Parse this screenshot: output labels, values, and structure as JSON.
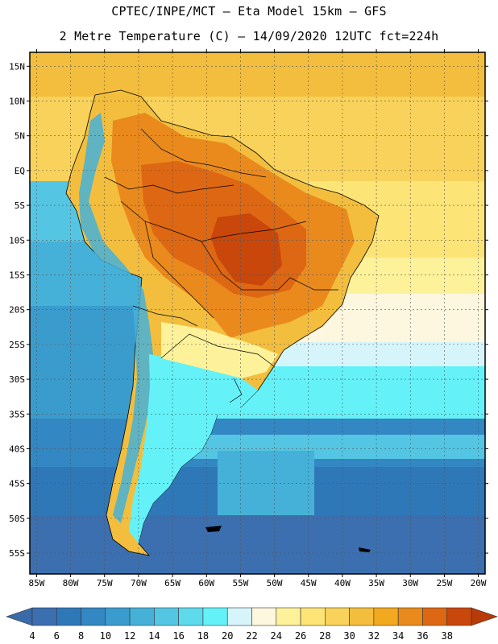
{
  "header": {
    "line1": "CPTEC/INPE/MCT –  Eta Model 15km – GFS",
    "line2": "2 Metre Temperature (C) – 14/09/2020 12UTC fct=224h"
  },
  "map": {
    "lat_labels": [
      "15N",
      "10N",
      "5N",
      "EQ",
      "5S",
      "10S",
      "15S",
      "20S",
      "25S",
      "30S",
      "35S",
      "40S",
      "45S",
      "50S",
      "55S"
    ],
    "lon_labels": [
      "85W",
      "80W",
      "75W",
      "70W",
      "65W",
      "60W",
      "55W",
      "50W",
      "45W",
      "40W",
      "35W",
      "30W",
      "25W",
      "20W"
    ],
    "lat_range": [
      17,
      -58
    ],
    "lon_range": [
      -86,
      -19
    ]
  },
  "colorbar": {
    "labels": [
      "4",
      "6",
      "8",
      "10",
      "12",
      "14",
      "16",
      "18",
      "20",
      "22",
      "24",
      "26",
      "28",
      "30",
      "32",
      "34",
      "36",
      "38"
    ],
    "colors": [
      "#3b6fb0",
      "#2f78b8",
      "#3387c2",
      "#3a9ccd",
      "#45b1d8",
      "#54c6e3",
      "#5ddbec",
      "#64f2f8",
      "#d6f5fb",
      "#fdf7df",
      "#fdf29a",
      "#fce477",
      "#f8d25a",
      "#f3be3e",
      "#f2a81f",
      "#ea8a1d",
      "#dd6712",
      "#c9470a"
    ],
    "low_color": "#3a6aa8",
    "high_color": "#b83a08"
  }
}
